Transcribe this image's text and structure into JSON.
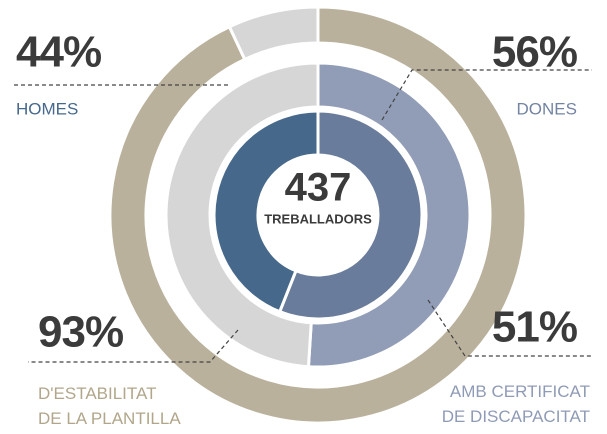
{
  "chart_data": {
    "type": "nested-donut",
    "center": {
      "value": 437,
      "label": "TREBALLADORS"
    },
    "rings": [
      {
        "categories": [
          "DONES",
          "HOMES"
        ],
        "values": [
          56,
          44
        ],
        "value_labels": [
          "56%",
          "44%"
        ],
        "colors": [
          "#6a7c9b",
          "#46688b"
        ]
      },
      {
        "categories": [
          "AMB CERTIFICAT\nDE DISCAPACITAT"
        ],
        "values": [
          51
        ],
        "value_labels": [
          "51%"
        ],
        "colors": [
          "#919db7"
        ],
        "track_color": "#d6d6d6"
      },
      {
        "categories": [
          "D'ESTABILITAT\nDE LA PLANTILLA"
        ],
        "values": [
          93
        ],
        "value_labels": [
          "93%"
        ],
        "colors": [
          "#b9b19c"
        ],
        "track_color": "#d6d6d6"
      }
    ]
  }
}
